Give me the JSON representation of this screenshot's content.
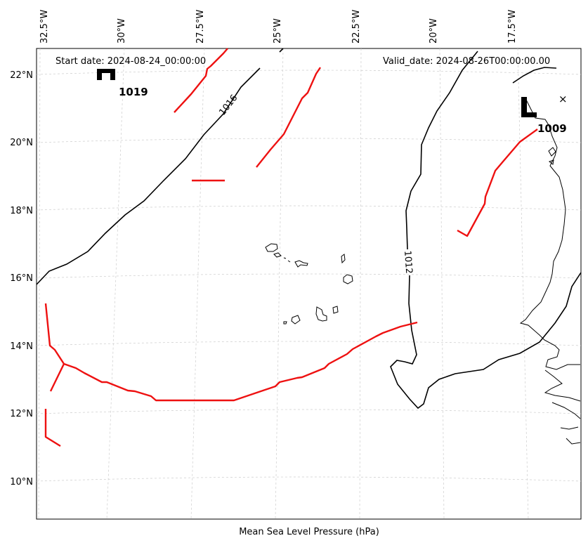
{
  "header": {
    "start_date": "Start date: 2024-08-24_00:00:00",
    "valid_date": "Valid_date: 2024-08-26T00:00:00.00"
  },
  "footer": {
    "label": "Mean Sea Level Pressure (hPa)"
  },
  "axes": {
    "lon_labels": [
      "32.5°W",
      "30°W",
      "27.5°W",
      "25°W",
      "22.5°W",
      "20°W",
      "17.5°W"
    ],
    "lat_labels": [
      "22°N",
      "20°N",
      "18°N",
      "16°N",
      "14°N",
      "12°N",
      "10°N"
    ]
  },
  "isobars": [
    {
      "id": "1016",
      "label": "1016",
      "color": "#000000"
    },
    {
      "id": "1012",
      "label": "1012",
      "color": "#000000"
    }
  ],
  "pressure_centers": [
    {
      "type": "H",
      "value": "1019"
    },
    {
      "type": "L",
      "value": "1009"
    }
  ],
  "marker": {
    "symbol": "×"
  },
  "colors": {
    "isobar": "#000000",
    "front": "#ee1111",
    "coastline": "#000000",
    "grid": "#cccccc"
  }
}
